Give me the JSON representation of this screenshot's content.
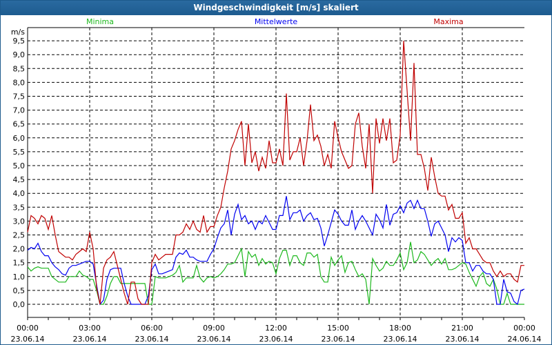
{
  "window": {
    "title": "Windgeschwindigkeit [m/s] skaliert"
  },
  "chart_data": {
    "type": "line",
    "title": "Windgeschwindigkeit [m/s] skaliert",
    "ylabel": "m/s",
    "ylim": [
      -0.5,
      10
    ],
    "xlim_hours": [
      0,
      24
    ],
    "x_step_minutes": 10,
    "grid": true,
    "yticks": [
      "0,0",
      "0,5",
      "1,0",
      "1,5",
      "2,0",
      "2,5",
      "3,0",
      "3,5",
      "4,0",
      "4,5",
      "5,0",
      "5,5",
      "6,0",
      "6,5",
      "7,0",
      "7,5",
      "8,0",
      "8,5",
      "9,0",
      "9,5"
    ],
    "xticks": [
      {
        "time": "00:00",
        "date": "23.06.14"
      },
      {
        "time": "03:00",
        "date": "23.06.14"
      },
      {
        "time": "06:00",
        "date": "23.06.14"
      },
      {
        "time": "09:00",
        "date": "23.06.14"
      },
      {
        "time": "12:00",
        "date": "23.06.14"
      },
      {
        "time": "15:00",
        "date": "23.06.14"
      },
      {
        "time": "18:00",
        "date": "23.06.14"
      },
      {
        "time": "21:00",
        "date": "23.06.14"
      },
      {
        "time": "00:00",
        "date": "24.06.14"
      }
    ],
    "series": [
      {
        "name": "Minima",
        "color": "#1cb81c",
        "values": [
          1.35,
          1.2,
          1.3,
          1.35,
          1.3,
          1.3,
          1.3,
          1.0,
          0.9,
          0.8,
          0.8,
          0.8,
          1.0,
          1.0,
          1.0,
          1.2,
          1.05,
          1.0,
          0.9,
          0.9,
          0.5,
          0.0,
          0.0,
          0.3,
          0.75,
          1.0,
          1.0,
          0.75,
          0.75,
          0.75,
          0.75,
          0.75,
          0.75,
          0.75,
          0.75,
          0.0,
          0.0,
          1.0,
          0.95,
          0.95,
          0.95,
          1.0,
          1.05,
          1.15,
          1.4,
          0.8,
          0.95,
          0.95,
          0.95,
          1.4,
          0.95,
          0.8,
          0.95,
          1.0,
          0.95,
          1.0,
          1.1,
          1.25,
          1.45,
          1.45,
          1.5,
          1.75,
          2.0,
          1.0,
          1.9,
          1.7,
          1.8,
          1.4,
          1.65,
          1.45,
          1.55,
          1.5,
          1.1,
          1.65,
          1.95,
          1.95,
          1.4,
          1.75,
          1.75,
          1.5,
          1.4,
          1.85,
          1.85,
          1.7,
          1.8,
          1.0,
          0.8,
          0.8,
          1.7,
          1.4,
          1.6,
          1.75,
          1.15,
          1.5,
          1.55,
          1.25,
          1.0,
          1.1,
          0.9,
          0.0,
          1.65,
          1.4,
          1.2,
          1.3,
          1.55,
          1.4,
          1.4,
          1.6,
          1.85,
          1.25,
          1.5,
          2.25,
          1.5,
          1.6,
          1.9,
          1.8,
          1.6,
          1.4,
          1.55,
          1.65,
          1.45,
          1.65,
          1.25,
          1.25,
          1.3,
          1.4,
          1.5,
          1.45,
          1.15,
          0.9,
          0.65,
          1.0,
          1.15,
          0.75,
          0.65,
          0.9,
          0.55,
          0.0,
          0.0,
          0.4,
          0.0,
          0.0,
          0.0,
          0.0,
          0.0
        ]
      },
      {
        "name": "Mittelwerte",
        "color": "#0000f0",
        "values": [
          1.95,
          2.05,
          2.0,
          2.2,
          1.9,
          1.75,
          1.75,
          1.5,
          1.35,
          1.25,
          1.1,
          1.05,
          1.3,
          1.4,
          1.4,
          1.45,
          1.5,
          1.55,
          1.55,
          1.45,
          0.7,
          0.0,
          0.15,
          0.9,
          1.25,
          1.3,
          1.3,
          1.3,
          0.75,
          0.3,
          0.0,
          0.0,
          0.0,
          0.0,
          0.0,
          0.3,
          1.25,
          1.45,
          1.1,
          1.1,
          1.15,
          1.2,
          1.25,
          1.7,
          1.85,
          1.8,
          1.95,
          1.7,
          1.7,
          1.6,
          1.55,
          1.55,
          1.55,
          1.8,
          2.0,
          2.4,
          2.75,
          2.9,
          3.4,
          2.5,
          3.25,
          3.6,
          3.05,
          3.2,
          2.9,
          3.0,
          2.7,
          3.0,
          2.9,
          3.2,
          2.95,
          2.7,
          2.7,
          3.2,
          3.2,
          3.9,
          3.05,
          3.3,
          3.3,
          3.4,
          3.0,
          3.2,
          3.3,
          3.05,
          3.1,
          2.75,
          2.1,
          2.5,
          2.95,
          3.4,
          3.25,
          3.0,
          2.85,
          2.85,
          3.4,
          2.7,
          3.0,
          3.2,
          3.0,
          2.75,
          2.5,
          3.25,
          3.05,
          2.75,
          3.6,
          2.85,
          3.25,
          3.3,
          3.55,
          3.3,
          3.65,
          3.75,
          3.45,
          3.75,
          3.45,
          3.45,
          3.0,
          2.45,
          2.9,
          3.0,
          2.75,
          2.5,
          1.9,
          2.4,
          2.25,
          2.4,
          2.3,
          1.5,
          1.5,
          1.2,
          1.4,
          1.4,
          1.2,
          1.1,
          1.1,
          0.9,
          0.0,
          0.0,
          0.9,
          0.45,
          0.4,
          0.1,
          0.0,
          0.5,
          0.55
        ]
      },
      {
        "name": "Maxima",
        "color": "#c00000",
        "values": [
          2.6,
          3.2,
          3.1,
          2.9,
          3.2,
          3.1,
          2.7,
          3.2,
          2.5,
          1.9,
          1.8,
          1.7,
          1.7,
          1.6,
          1.8,
          1.9,
          2.0,
          1.9,
          2.6,
          2.0,
          0.6,
          0.0,
          1.3,
          1.6,
          1.7,
          1.9,
          1.4,
          0.9,
          0.4,
          0.0,
          0.8,
          0.8,
          0.2,
          0.0,
          0.0,
          0.0,
          1.5,
          1.8,
          1.6,
          1.7,
          1.8,
          1.8,
          1.8,
          2.5,
          2.5,
          2.6,
          2.9,
          2.7,
          3.0,
          2.7,
          2.6,
          3.2,
          2.6,
          2.8,
          2.8,
          3.2,
          3.5,
          4.2,
          4.8,
          5.6,
          5.9,
          6.3,
          6.6,
          5.0,
          6.5,
          5.1,
          5.5,
          4.8,
          5.3,
          4.9,
          5.9,
          5.1,
          5.1,
          5.6,
          5.0,
          7.6,
          5.2,
          5.5,
          5.5,
          6.0,
          5.0,
          5.9,
          7.2,
          5.9,
          6.1,
          5.7,
          5.0,
          5.4,
          4.9,
          6.6,
          6.0,
          5.5,
          5.2,
          4.9,
          5.0,
          6.5,
          6.9,
          5.7,
          4.9,
          6.5,
          4.0,
          6.7,
          5.8,
          6.7,
          5.9,
          6.7,
          5.1,
          5.2,
          6.1,
          9.5,
          7.7,
          5.9,
          8.7,
          5.4,
          5.4,
          4.9,
          4.1,
          5.3,
          4.6,
          4.0,
          3.9,
          3.9,
          3.4,
          3.6,
          3.1,
          3.1,
          3.3,
          2.2,
          2.4,
          2.0,
          2.0,
          1.8,
          1.6,
          1.5,
          1.5,
          1.2,
          1.0,
          1.2,
          1.0,
          1.1,
          1.1,
          0.9,
          0.8,
          1.4,
          1.4
        ]
      }
    ]
  }
}
